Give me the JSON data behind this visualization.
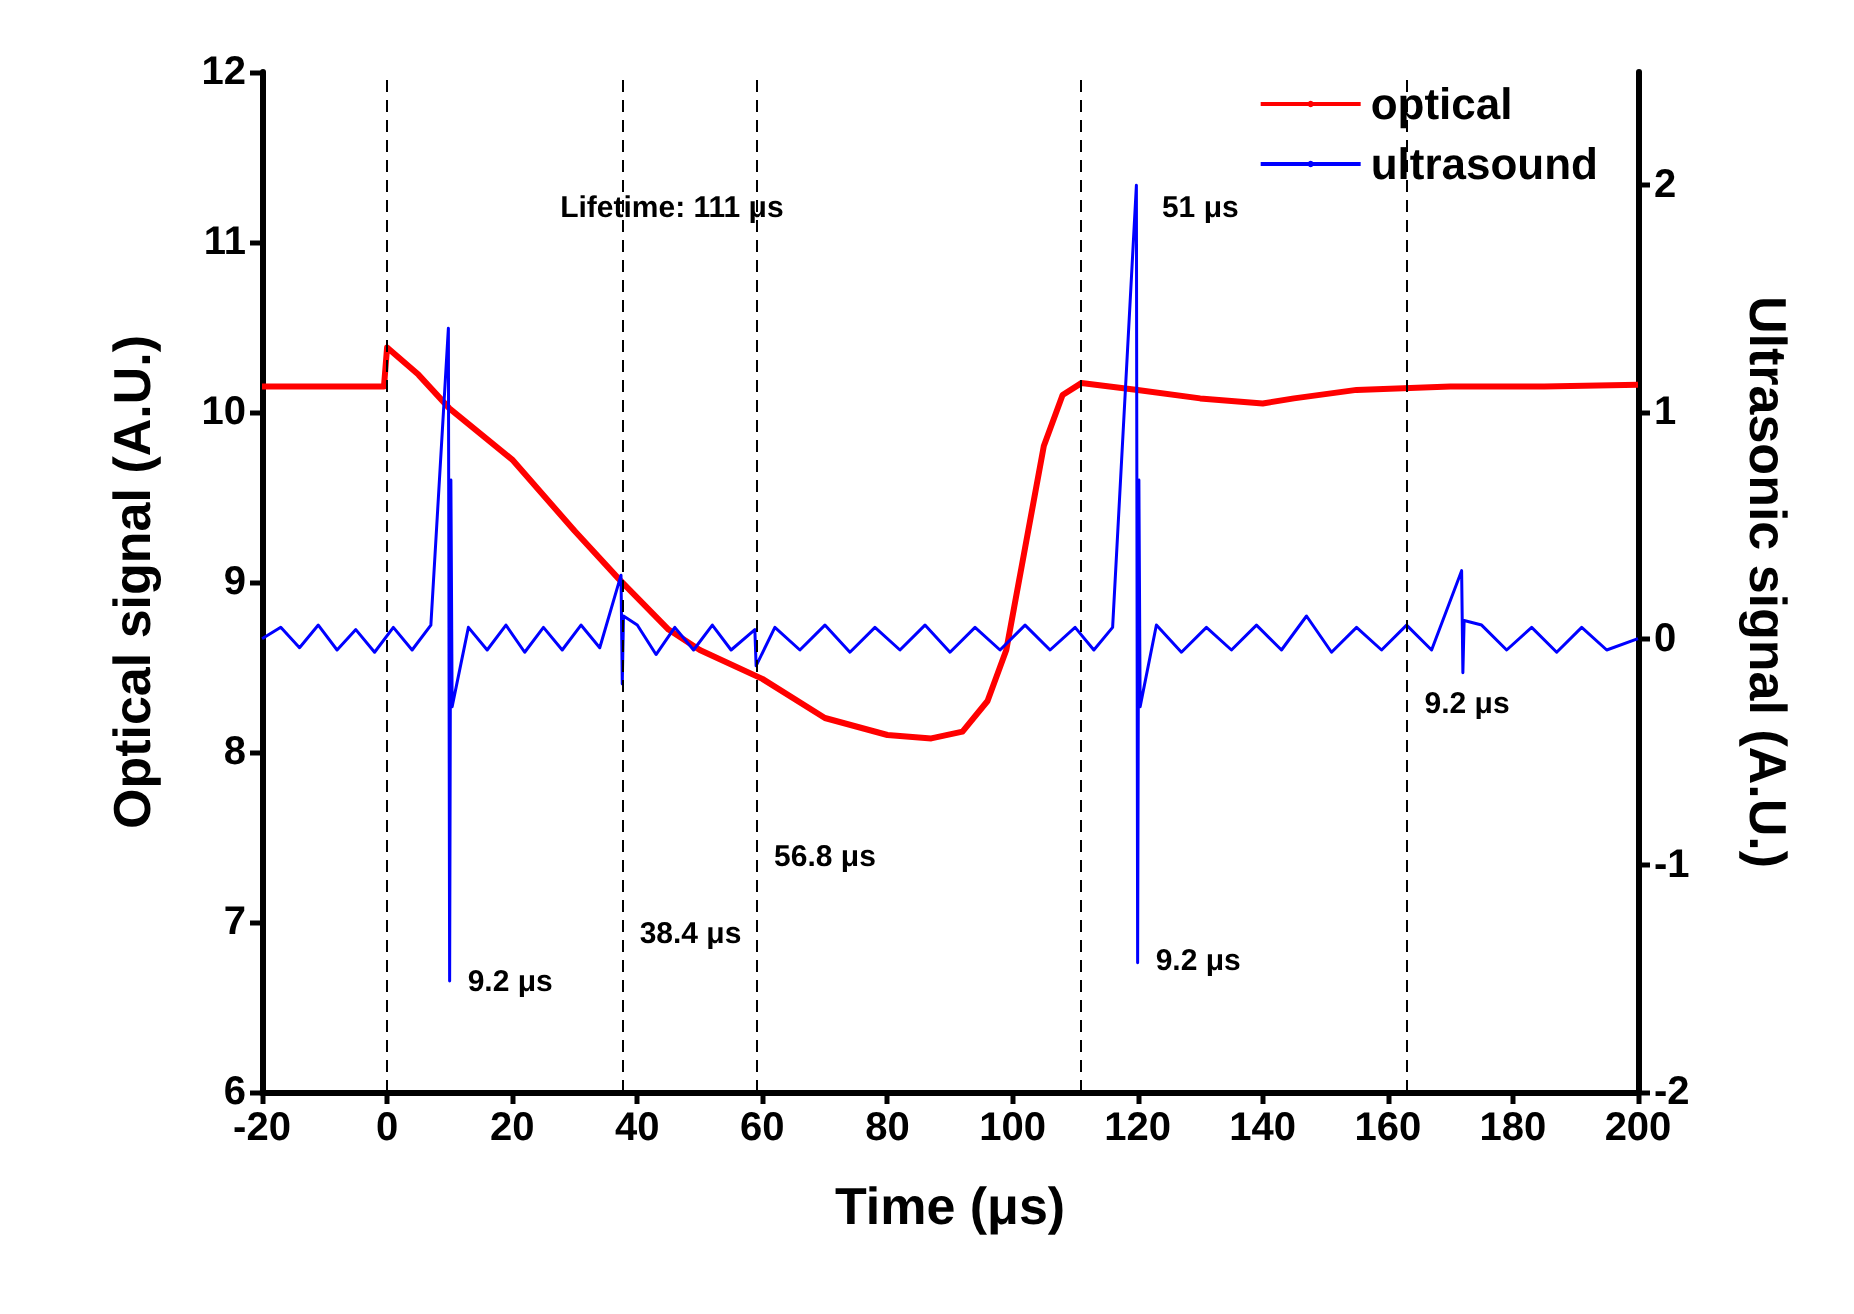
{
  "chart_data": {
    "type": "line",
    "xlabel": "Time (μs)",
    "ylabel": "Optical signal (A.U.)",
    "y2label": "Ultrasonic signal (A.U.)",
    "xlim": [
      -20,
      200
    ],
    "xticks": [
      -20,
      0,
      20,
      40,
      60,
      80,
      100,
      120,
      140,
      160,
      180,
      200
    ],
    "ylim": [
      6,
      12
    ],
    "yticks": [
      6,
      7,
      8,
      9,
      10,
      11,
      12
    ],
    "y2lim": [
      -2,
      2.5
    ],
    "y2ticks": [
      -2,
      -1,
      0,
      1,
      2
    ],
    "legend": "top right",
    "grid": false,
    "marker": "none",
    "series": [
      {
        "name": "optical",
        "color": "#ff0000",
        "x": [
          -20,
          -10,
          -0.5,
          0,
          5,
          10,
          20,
          30,
          37,
          45,
          50,
          60,
          70,
          80,
          87,
          92,
          96,
          99,
          102,
          105,
          108,
          111,
          120,
          130,
          140,
          145,
          155,
          170,
          185,
          200
        ],
        "values": [
          10.15,
          10.15,
          10.15,
          10.38,
          10.22,
          10.02,
          9.72,
          9.3,
          9.02,
          8.72,
          8.6,
          8.43,
          8.2,
          8.1,
          8.08,
          8.12,
          8.3,
          8.6,
          9.2,
          9.8,
          10.1,
          10.17,
          10.13,
          10.08,
          10.05,
          10.08,
          10.13,
          10.15,
          10.15,
          10.16
        ]
      },
      {
        "name": "ultrasound",
        "color": "#0000ff",
        "axis": "y2",
        "x": [
          -20,
          -17,
          -14,
          -11,
          -8,
          -5,
          -2,
          1,
          4,
          7,
          9.8,
          10,
          10.2,
          10.4,
          13,
          16,
          19,
          22,
          25,
          28,
          31,
          34,
          37.4,
          37.6,
          37.8,
          40,
          43,
          46,
          49,
          52,
          55,
          58.8,
          59,
          62,
          66,
          70,
          74,
          78,
          82,
          86,
          90,
          94,
          98,
          102,
          106,
          110,
          113,
          116,
          119.8,
          120,
          120.2,
          120.4,
          123,
          127,
          131,
          135,
          139,
          143,
          147,
          151,
          155,
          159,
          163,
          167,
          171.8,
          172,
          172.2,
          175,
          179,
          183,
          187,
          191,
          195,
          200
        ],
        "values": [
          0,
          0.05,
          -0.04,
          0.06,
          -0.05,
          0.04,
          -0.06,
          0.05,
          -0.05,
          0.06,
          1.37,
          -1.51,
          0.7,
          -0.3,
          0.05,
          -0.05,
          0.06,
          -0.06,
          0.05,
          -0.05,
          0.06,
          -0.04,
          0.28,
          -0.2,
          0.1,
          0.06,
          -0.07,
          0.05,
          -0.05,
          0.06,
          -0.05,
          0.04,
          -0.12,
          0.05,
          -0.05,
          0.06,
          -0.06,
          0.05,
          -0.05,
          0.06,
          -0.06,
          0.05,
          -0.05,
          0.06,
          -0.05,
          0.05,
          -0.05,
          0.05,
          2.0,
          -1.43,
          0.7,
          -0.3,
          0.06,
          -0.06,
          0.05,
          -0.05,
          0.06,
          -0.05,
          0.1,
          -0.06,
          0.05,
          -0.05,
          0.06,
          -0.05,
          0.3,
          -0.15,
          0.08,
          0.06,
          -0.05,
          0.05,
          -0.06,
          0.05,
          -0.05,
          0
        ]
      }
    ],
    "ref_lines": [
      {
        "axis": "x",
        "value": 0,
        "line_style": "dashed",
        "color": "#000000"
      },
      {
        "axis": "x",
        "value": 37.5,
        "line_style": "dashed",
        "color": "#000000"
      },
      {
        "axis": "x",
        "value": 59,
        "line_style": "dashed",
        "color": "#000000"
      },
      {
        "axis": "x",
        "value": 111,
        "line_style": "dashed",
        "color": "#000000"
      },
      {
        "axis": "x",
        "value": 163,
        "line_style": "dashed",
        "color": "#000000"
      }
    ],
    "annotations": [
      "Lifetime: 111 μs",
      "51 μs",
      {
        "text": "56.8 μs",
        "x": 59,
        "y": 7.38
      },
      {
        "text": "38.4 μs",
        "x": 37.5,
        "y": 6.93
      },
      {
        "text": "9.2 μs",
        "x": 10,
        "y": 6.65
      },
      {
        "text": "9.2 μs",
        "x": 120,
        "y": 6.77
      },
      {
        "text": "9.2 μs",
        "x": 163,
        "y": 8.28
      }
    ]
  }
}
